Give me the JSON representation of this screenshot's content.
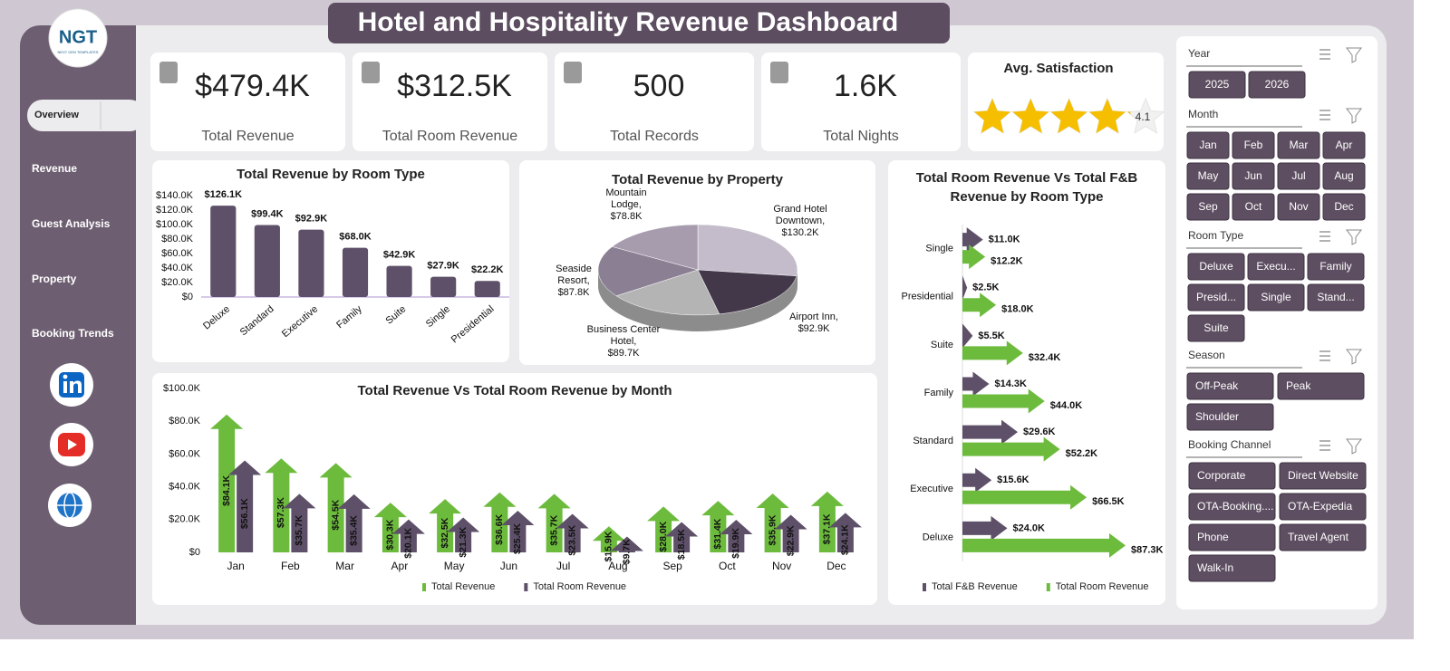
{
  "header": {
    "title": "Hotel and Hospitality Revenue Dashboard",
    "logo": "NGT",
    "logo_subtitle": "NEXT GEN TEMPLATES"
  },
  "nav": [
    "Overview",
    "Revenue",
    "Guest Analysis",
    "Property",
    "Booking Trends"
  ],
  "kpis": [
    {
      "value": "$479.4K",
      "label": "Total Revenue"
    },
    {
      "value": "$312.5K",
      "label": "Total Room Revenue"
    },
    {
      "value": "500",
      "label": "Total Records"
    },
    {
      "value": "1.6K",
      "label": "Total Nights"
    }
  ],
  "satisfaction": {
    "title": "Avg. Satisfaction",
    "value": 4.1
  },
  "slicers": [
    {
      "title": "Year",
      "items": [
        "2025",
        "2026"
      ]
    },
    {
      "title": "Month",
      "items": [
        "Jan",
        "Feb",
        "Mar",
        "Apr",
        "May",
        "Jun",
        "Jul",
        "Aug",
        "Sep",
        "Oct",
        "Nov",
        "Dec"
      ]
    },
    {
      "title": "Room Type",
      "items": [
        "Deluxe",
        "Execu...",
        "Family",
        "Presid...",
        "Single",
        "Stand...",
        "Suite"
      ]
    },
    {
      "title": "Season",
      "items": [
        "Off-Peak",
        "Peak",
        "Shoulder"
      ]
    },
    {
      "title": "Booking Channel",
      "items": [
        "Corporate",
        "Direct Website",
        "OTA-Booking....",
        "OTA-Expedia",
        "Phone",
        "Travel Agent",
        "Walk-In"
      ]
    }
  ],
  "chart_data": [
    {
      "type": "bar",
      "title": "Total Revenue by Room Type",
      "categories": [
        "Deluxe",
        "Standard",
        "Executive",
        "Family",
        "Suite",
        "Single",
        "Presidential"
      ],
      "values": [
        126100,
        99400,
        92900,
        68000,
        42900,
        27900,
        22200
      ],
      "value_labels": [
        "$126.1K",
        "$99.4K",
        "$92.9K",
        "$68.0K",
        "$42.9K",
        "$27.9K",
        "$22.2K"
      ],
      "color": "#5e5068",
      "ylim": [
        0,
        140000
      ],
      "yticks": [
        {
          "value": 0,
          "label": "$0"
        },
        {
          "value": 20000,
          "label": "$20.0K"
        },
        {
          "value": 40000,
          "label": "$40.0K"
        },
        {
          "value": 60000,
          "label": "$60.0K"
        },
        {
          "value": 80000,
          "label": "$80.0K"
        },
        {
          "value": 100000,
          "label": "$100.0K"
        },
        {
          "value": 120000,
          "label": "$120.0K"
        },
        {
          "value": 140000,
          "label": "$140.0K"
        }
      ]
    },
    {
      "type": "pie",
      "title": "Total Revenue by Property",
      "categories": [
        "Grand Hotel Downtown,",
        "Airport Inn,",
        "Business Center Hotel,",
        "Seaside Resort,",
        "Mountain Lodge,"
      ],
      "values": [
        130.2,
        92.9,
        89.7,
        87.8,
        78.8
      ],
      "value_labels": [
        "$130.2K",
        "$92.9K",
        "$89.7K",
        "$87.8K",
        "$78.8K"
      ],
      "colors": [
        "#c4bccb",
        "#43384a",
        "#b4b4b4",
        "#8b7f94",
        "#a69cae"
      ]
    },
    {
      "type": "bar",
      "title": "Total Revenue Vs Total Room Revenue by Month",
      "categories": [
        "Jan",
        "Feb",
        "Mar",
        "Apr",
        "May",
        "Jun",
        "Jul",
        "Aug",
        "Sep",
        "Oct",
        "Nov",
        "Dec"
      ],
      "series": [
        {
          "name": "Total Revenue",
          "color": "#6cbb3c",
          "values": [
            84100,
            57300,
            54500,
            30300,
            32500,
            36600,
            35700,
            15900,
            28000,
            31400,
            35900,
            37100
          ],
          "value_labels": [
            "$84.1K",
            "$57.3K",
            "$54.5K",
            "$30.3K",
            "$32.5K",
            "$36.6K",
            "$35.7K",
            "$15.9K",
            "$28.0K",
            "$31.4K",
            "$35.9K",
            "$37.1K"
          ]
        },
        {
          "name": "Total Room Revenue",
          "color": "#5e5068",
          "values": [
            56100,
            35700,
            35400,
            20100,
            21300,
            25400,
            23500,
            9700,
            18500,
            19900,
            22900,
            24100
          ],
          "value_labels": [
            "$56.1K",
            "$35.7K",
            "$35.4K",
            "$20.1K",
            "$21.3K",
            "$25.4K",
            "$23.5K",
            "$9.7K",
            "$18.5K",
            "$19.9K",
            "$22.9K",
            "$24.1K"
          ]
        }
      ],
      "ylim": [
        0,
        100000
      ],
      "yticks": [
        {
          "value": 0,
          "label": "$0"
        },
        {
          "value": 20000,
          "label": "$20.0K"
        },
        {
          "value": 40000,
          "label": "$40.0K"
        },
        {
          "value": 60000,
          "label": "$60.0K"
        },
        {
          "value": 80000,
          "label": "$80.0K"
        },
        {
          "value": 100000,
          "label": "$100.0K"
        }
      ],
      "legend": "bottom"
    },
    {
      "type": "bar",
      "orientation": "horizontal",
      "title": "Total Room Revenue Vs Total F&B Revenue by Room Type",
      "categories": [
        "Single",
        "Presidential",
        "Suite",
        "Family",
        "Standard",
        "Executive",
        "Deluxe"
      ],
      "series": [
        {
          "name": "Total F&B Revenue",
          "color": "#5e5068",
          "values": [
            11.0,
            2.5,
            5.5,
            14.3,
            29.6,
            15.6,
            24.0
          ],
          "value_labels": [
            "$11.0K",
            "$2.5K",
            "$5.5K",
            "$14.3K",
            "$29.6K",
            "$15.6K",
            "$24.0K"
          ]
        },
        {
          "name": "Total Room Revenue",
          "color": "#6cbb3c",
          "values": [
            12.2,
            18.0,
            32.4,
            44.0,
            52.2,
            66.5,
            87.3
          ],
          "value_labels": [
            "$12.2K",
            "$18.0K",
            "$32.4K",
            "$44.0K",
            "$52.2K",
            "$66.5K",
            "$87.3K"
          ]
        }
      ],
      "legend": "bottom"
    }
  ]
}
